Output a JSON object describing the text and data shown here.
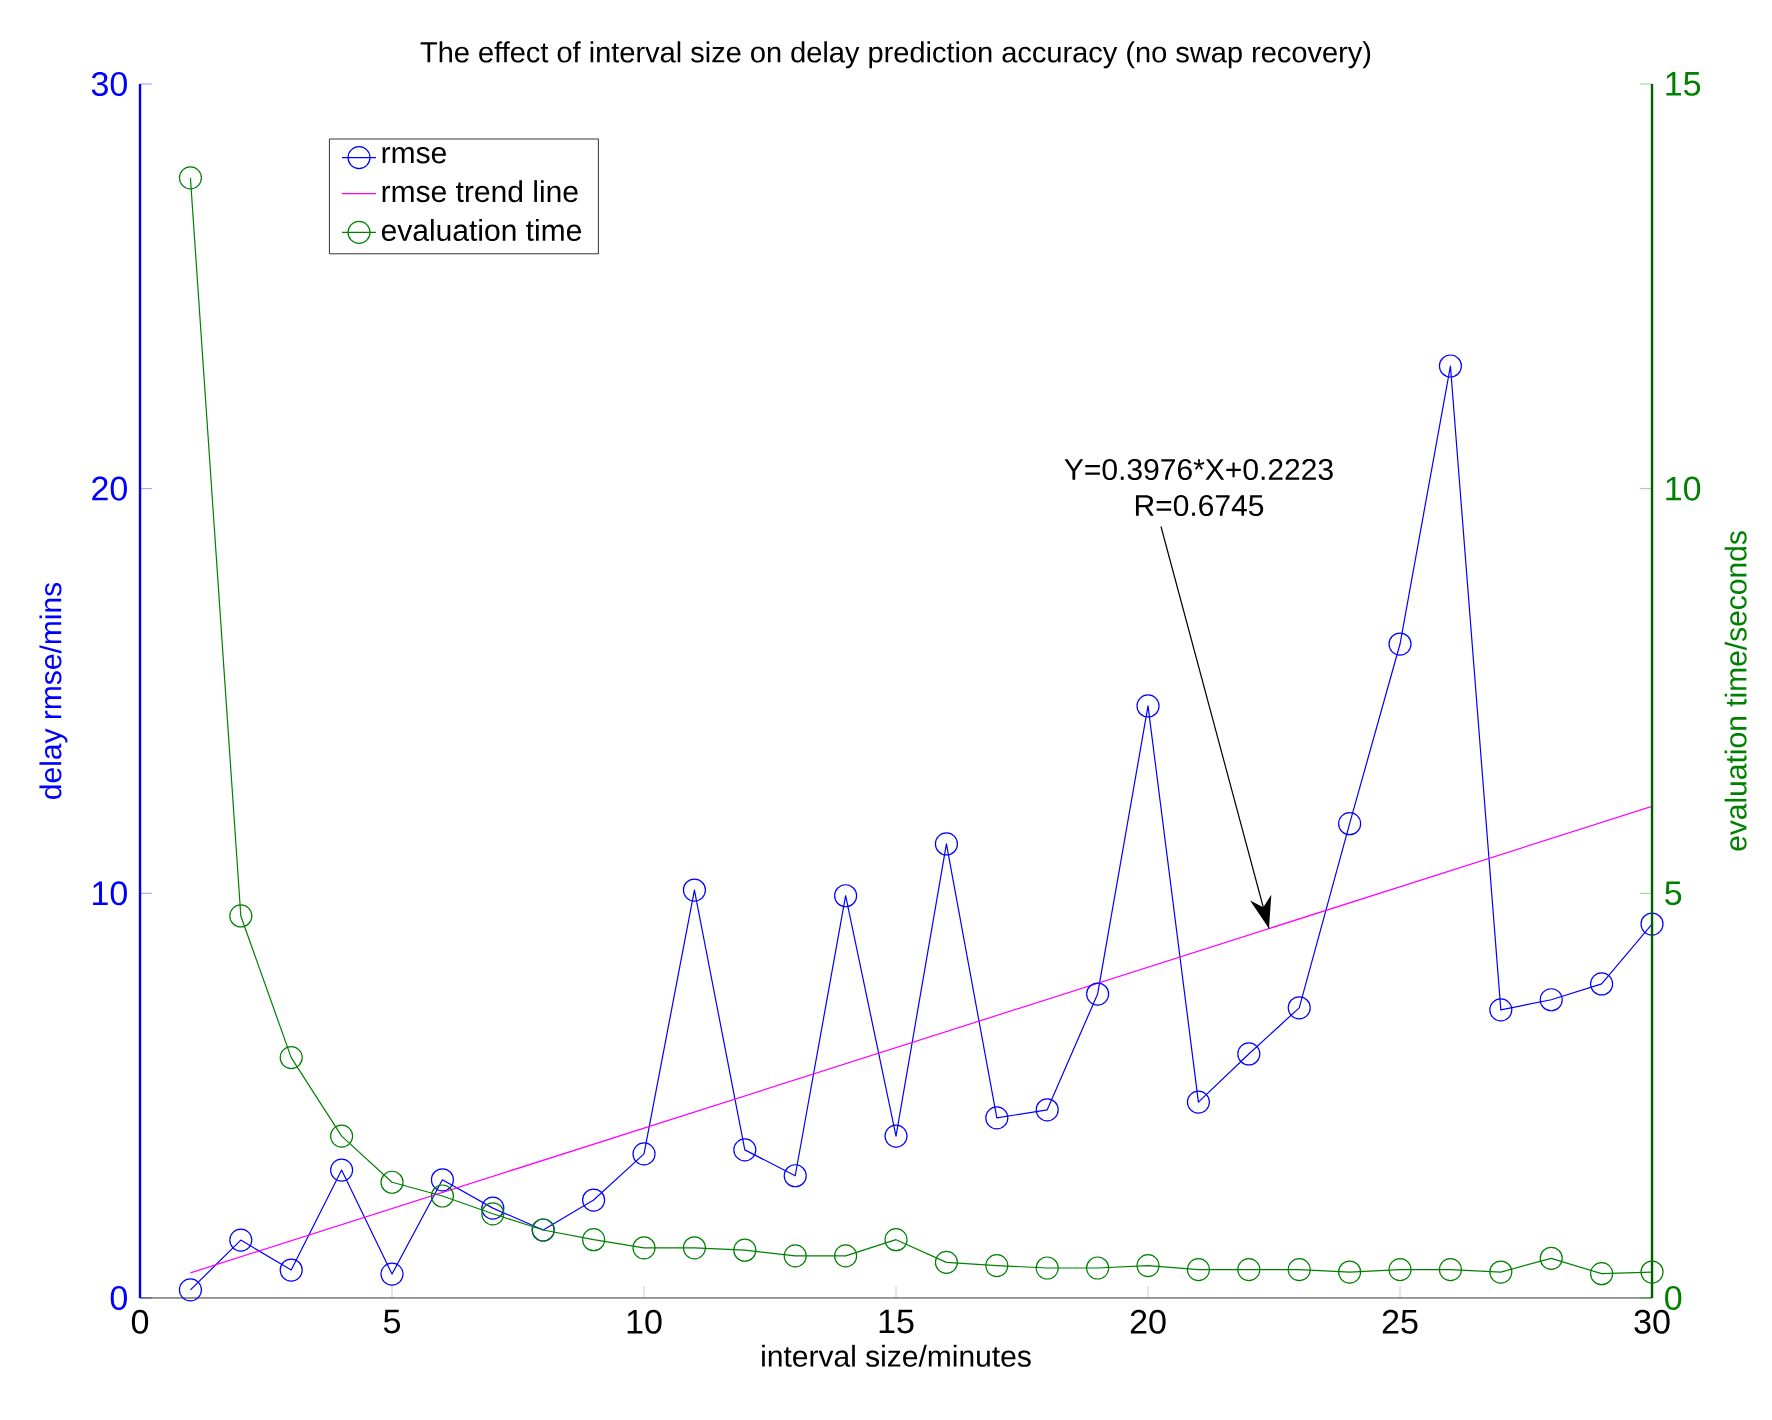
{
  "chart_data": {
    "type": "line",
    "title": "The effect of interval size on delay prediction accuracy (no swap recovery)",
    "xlabel": "interval size/minutes",
    "ylabel": "delay rmse/mins",
    "y2label": "evaluation time/seconds",
    "x": [
      1,
      2,
      3,
      4,
      5,
      6,
      7,
      8,
      9,
      10,
      11,
      12,
      13,
      14,
      15,
      16,
      17,
      18,
      19,
      20,
      21,
      22,
      23,
      24,
      25,
      26,
      27,
      28,
      29,
      30
    ],
    "xlim": [
      0,
      30
    ],
    "xticks": [
      0,
      5,
      10,
      15,
      20,
      25,
      30
    ],
    "ylim": [
      0,
      30
    ],
    "yticks": [
      0,
      10,
      20,
      30
    ],
    "y2lim": [
      0,
      15
    ],
    "y2ticks": [
      0,
      5,
      10,
      15
    ],
    "marker": "circle",
    "legend": "top left",
    "series": [
      {
        "name": "rmse",
        "color": "#0000ff",
        "values": [
          0.2,
          1.43,
          0.69,
          3.16,
          0.59,
          2.92,
          2.22,
          1.68,
          2.42,
          3.56,
          10.08,
          3.66,
          3.02,
          9.94,
          4.0,
          11.22,
          4.45,
          4.65,
          7.51,
          14.63,
          4.84,
          6.03,
          7.17,
          11.72,
          16.16,
          23.03,
          7.12,
          7.37,
          7.76,
          9.24
        ]
      },
      {
        "name": "rmse trend line",
        "color": "#ff00ff",
        "marker": "none",
        "x": [
          1,
          30
        ],
        "values": [
          0.62,
          12.15
        ]
      },
      {
        "name": "evaluation time",
        "color": "#008000",
        "axis": "y2",
        "values": [
          13.84,
          4.72,
          2.97,
          2.0,
          1.43,
          1.26,
          1.04,
          0.84,
          0.72,
          0.62,
          0.62,
          0.59,
          0.52,
          0.52,
          0.72,
          0.44,
          0.4,
          0.37,
          0.37,
          0.4,
          0.35,
          0.35,
          0.35,
          0.32,
          0.35,
          0.35,
          0.32,
          0.49,
          0.3,
          0.32
        ]
      }
    ],
    "annotations": [
      "Y=0.3976*X+0.2223",
      {
        "text": "R=0.6745",
        "x": 22.4,
        "y": 9.13
      }
    ]
  }
}
